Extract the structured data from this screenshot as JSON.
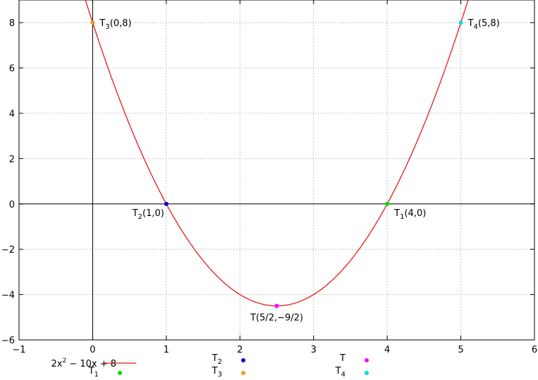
{
  "chart_data": {
    "type": "line",
    "xlim": [
      -1,
      6
    ],
    "ylim": [
      -6,
      9
    ],
    "x_ticks": [
      "-1",
      "0",
      "1",
      "2",
      "3",
      "4",
      "5",
      "6"
    ],
    "y_ticks": [
      "-6",
      "-4",
      "-2",
      "0",
      "2",
      "4",
      "6",
      "8"
    ],
    "grid": true,
    "series": [
      {
        "name": "2x2 - 10x + 8",
        "function": "2*x^2 - 10*x + 8",
        "color": "#e41a1c",
        "type": "line"
      }
    ],
    "points": [
      {
        "key": "T1",
        "label": "T1(4,0)",
        "legend": "T1",
        "x": 4,
        "y": 0,
        "color": "#00dd00"
      },
      {
        "key": "T2",
        "label": "T2(1,0)",
        "legend": "T2",
        "x": 1,
        "y": 0,
        "color": "#0000cc"
      },
      {
        "key": "T3",
        "label": "T3(0,8)",
        "legend": "T3",
        "x": 0,
        "y": 8,
        "color": "#e6a020"
      },
      {
        "key": "T",
        "label": "T(5/2,-9/2)",
        "legend": "T",
        "x": 2.5,
        "y": -4.5,
        "color": "#ff00ff"
      },
      {
        "key": "T4",
        "label": "T4(5,8)",
        "legend": "T4",
        "x": 5,
        "y": 8,
        "color": "#00dddd"
      }
    ],
    "legend": "bottom"
  }
}
